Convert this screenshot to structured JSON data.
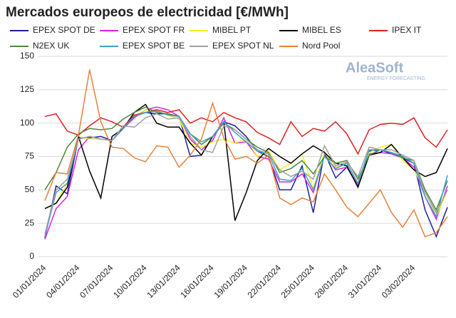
{
  "chart_data": {
    "type": "line",
    "title": "Mercados europeos de electricidad [€/MWh]",
    "watermark": [
      "AleaSoft",
      "ENERGY FORECASTING"
    ],
    "categories": [
      "01/01/2024",
      null,
      null,
      "04/01/2024",
      null,
      null,
      "07/01/2024",
      null,
      null,
      "10/01/2024",
      null,
      null,
      "13/01/2024",
      null,
      null,
      "16/01/2024",
      null,
      null,
      "19/01/2024",
      null,
      null,
      "22/01/2024",
      null,
      null,
      "25/01/2024",
      null,
      null,
      "28/01/2024",
      null,
      null,
      "31/01/2024",
      null,
      null,
      "03/02/2024",
      null,
      null,
      null
    ],
    "ylim": [
      0,
      150
    ],
    "yticks": [
      0,
      25,
      50,
      75,
      100,
      125,
      150
    ],
    "grid": true,
    "series": [
      {
        "name": "EPEX SPOT DE",
        "color": "#1f1f9e",
        "values": [
          14,
          53,
          47,
          89,
          89,
          90,
          87,
          96,
          105,
          108,
          107,
          107,
          105,
          75,
          76,
          90,
          101,
          98,
          90,
          79,
          75,
          50,
          50,
          68,
          33,
          78,
          59,
          67,
          53,
          79,
          80,
          77,
          74,
          70,
          35,
          15,
          37
        ]
      },
      {
        "name": "EPEX SPOT FR",
        "color": "#e020e0",
        "values": [
          13,
          36,
          45,
          80,
          90,
          88,
          87,
          96,
          104,
          110,
          112,
          110,
          105,
          88,
          80,
          87,
          104,
          85,
          86,
          75,
          73,
          56,
          56,
          62,
          48,
          76,
          65,
          67,
          54,
          77,
          78,
          77,
          74,
          67,
          45,
          28,
          53
        ]
      },
      {
        "name": "MIBEL PT",
        "color": "#f0f020",
        "values": [
          36,
          40,
          55,
          90,
          88,
          88,
          87,
          97,
          105,
          110,
          110,
          106,
          103,
          85,
          82,
          86,
          88,
          85,
          88,
          75,
          79,
          65,
          70,
          77,
          51,
          78,
          67,
          70,
          55,
          78,
          82,
          84,
          72,
          65,
          50,
          30,
          50
        ]
      },
      {
        "name": "MIBEL ES",
        "color": "#000000",
        "values": [
          36,
          40,
          52,
          90,
          64,
          44,
          90,
          96,
          108,
          114,
          100,
          97,
          97,
          85,
          76,
          90,
          101,
          27,
          48,
          72,
          81,
          75,
          70,
          77,
          83,
          78,
          70,
          68,
          52,
          76,
          78,
          84,
          74,
          65,
          60,
          63,
          81
        ]
      },
      {
        "name": "IPEX IT",
        "color": "#e02020",
        "values": [
          105,
          107,
          94,
          91,
          98,
          104,
          101,
          97,
          106,
          108,
          110,
          108,
          110,
          100,
          104,
          101,
          108,
          104,
          101,
          93,
          89,
          84,
          101,
          90,
          96,
          94,
          101,
          92,
          77,
          95,
          99,
          100,
          99,
          104,
          89,
          82,
          95
        ]
      },
      {
        "name": "N2EX UK",
        "color": "#4a8a3a",
        "values": [
          50,
          63,
          82,
          92,
          96,
          95,
          96,
          103,
          108,
          112,
          108,
          107,
          105,
          92,
          84,
          90,
          100,
          95,
          88,
          82,
          78,
          63,
          66,
          72,
          62,
          75,
          70,
          72,
          58,
          76,
          80,
          78,
          74,
          72,
          50,
          35,
          57
        ]
      },
      {
        "name": "EPEX SPOT BE",
        "color": "#3aa0d0",
        "values": [
          15,
          48,
          55,
          88,
          90,
          88,
          87,
          96,
          105,
          108,
          109,
          106,
          105,
          92,
          86,
          90,
          101,
          93,
          86,
          79,
          77,
          58,
          57,
          66,
          50,
          75,
          66,
          70,
          55,
          80,
          80,
          78,
          75,
          70,
          45,
          30,
          61
        ]
      },
      {
        "name": "EPEX SPOT NL",
        "color": "#a0a0a0",
        "values": [
          17,
          50,
          58,
          88,
          90,
          88,
          87,
          98,
          97,
          104,
          107,
          103,
          104,
          90,
          80,
          78,
          98,
          95,
          88,
          80,
          77,
          65,
          60,
          64,
          58,
          83,
          68,
          71,
          60,
          82,
          80,
          80,
          76,
          72,
          48,
          33,
          50
        ]
      },
      {
        "name": "Nord Pool",
        "color": "#e8803a",
        "values": [
          42,
          63,
          62,
          91,
          140,
          101,
          82,
          81,
          74,
          71,
          83,
          82,
          67,
          76,
          88,
          115,
          89,
          73,
          75,
          70,
          76,
          44,
          39,
          44,
          41,
          62,
          50,
          37,
          30,
          40,
          50,
          33,
          22,
          35,
          15,
          18,
          30
        ]
      }
    ]
  }
}
